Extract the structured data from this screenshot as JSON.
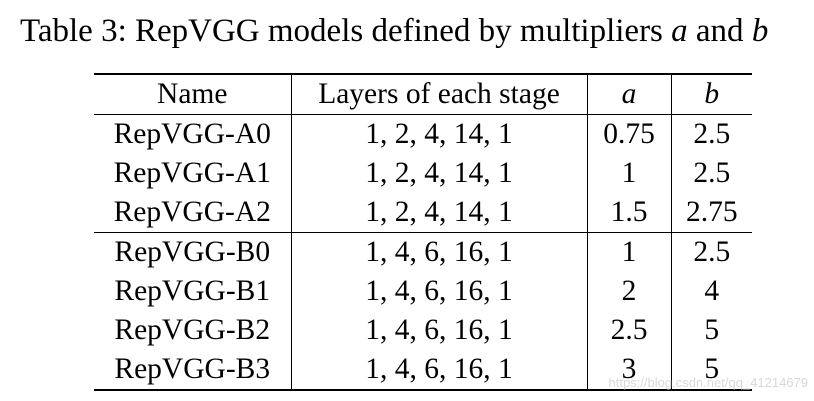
{
  "caption": {
    "prefix": "Table 3: RepVGG models defined by multipliers ",
    "var_a": "a",
    "joiner": " and ",
    "var_b": "b"
  },
  "table": {
    "headers": [
      "Name",
      "Layers of each stage",
      "a",
      "b"
    ],
    "groups": [
      {
        "rows": [
          [
            "RepVGG-A0",
            "1, 2, 4, 14, 1",
            "0.75",
            "2.5"
          ],
          [
            "RepVGG-A1",
            "1, 2, 4, 14, 1",
            "1",
            "2.5"
          ],
          [
            "RepVGG-A2",
            "1, 2, 4, 14, 1",
            "1.5",
            "2.75"
          ]
        ]
      },
      {
        "rows": [
          [
            "RepVGG-B0",
            "1, 4, 6, 16, 1",
            "1",
            "2.5"
          ],
          [
            "RepVGG-B1",
            "1, 4, 6, 16, 1",
            "2",
            "4"
          ],
          [
            "RepVGG-B2",
            "1, 4, 6, 16, 1",
            "2.5",
            "5"
          ],
          [
            "RepVGG-B3",
            "1, 4, 6, 16, 1",
            "3",
            "5"
          ]
        ]
      }
    ]
  },
  "watermark": "https://blog.csdn.net/qq_41214679"
}
